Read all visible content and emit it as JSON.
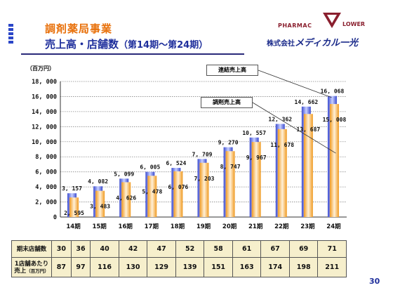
{
  "header": {
    "title_line1": "調剤薬局事業",
    "title_line2_main": "売上高・店舗数",
    "title_line2_sub": "（第14期～第24期）"
  },
  "logo": {
    "top_left": "PHARMAC",
    "top_right": "LOWER",
    "prefix": "株式会社",
    "main": "メディカル一光",
    "brand_color": "#8a1f2e"
  },
  "chart_data": {
    "type": "bar",
    "unit_label": "（百万円）",
    "categories": [
      "14期",
      "15期",
      "16期",
      "17期",
      "18期",
      "19期",
      "20期",
      "21期",
      "22期",
      "23期",
      "24期"
    ],
    "series": [
      {
        "name": "連結売上高",
        "values": [
          3157,
          4082,
          5099,
          6005,
          6524,
          7709,
          9270,
          10557,
          12362,
          14662,
          16068
        ],
        "color": "#6a7ae8"
      },
      {
        "name": "調剤売上高",
        "values": [
          2595,
          3483,
          4626,
          5478,
          6076,
          7203,
          8747,
          9967,
          11678,
          13687,
          15008
        ],
        "color": "#f0a030"
      }
    ],
    "ylim": [
      0,
      18000
    ],
    "yticks": [
      0,
      2000,
      4000,
      6000,
      8000,
      10000,
      12000,
      14000,
      16000,
      18000
    ],
    "ytick_labels": [
      "0",
      "2, 000",
      "4, 000",
      "6, 000",
      "8, 000",
      "10, 000",
      "12, 000",
      "14, 000",
      "16, 000",
      "18, 000"
    ],
    "labels_consolidated": [
      "3, 157",
      "4, 082",
      "5, 099",
      "6, 005",
      "6, 524",
      "7, 709",
      "9, 270",
      "10, 557",
      "12, 362",
      "14, 662",
      "16, 068"
    ],
    "labels_dispensing": [
      "2, 595",
      "3, 483",
      "4, 626",
      "5, 478",
      "6, 076",
      "7, 203",
      "8, 747",
      "9, 967",
      "11, 678",
      "13, 687",
      "15, 008"
    ],
    "grid": true
  },
  "table": {
    "row1_label": "期末店舗数",
    "row1_values": [
      "30",
      "36",
      "40",
      "42",
      "47",
      "52",
      "58",
      "61",
      "67",
      "69",
      "71"
    ],
    "row2_label_a": "1店舗あたり",
    "row2_label_b": "売上",
    "row2_label_unit": "（百万円）",
    "row2_values": [
      "87",
      "97",
      "116",
      "130",
      "129",
      "139",
      "151",
      "163",
      "174",
      "198",
      "211"
    ]
  },
  "page_number": "30"
}
